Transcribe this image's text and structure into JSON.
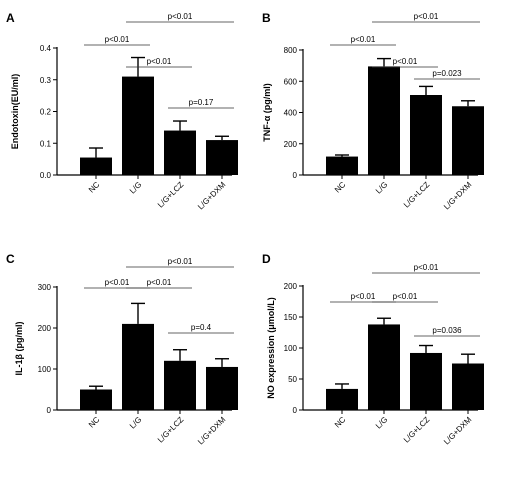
{
  "colors": {
    "bar": "#000000",
    "axis": "#000000",
    "bracket": "#333333"
  },
  "chart_data": [
    {
      "type": "bar",
      "panel": "A",
      "categories": [
        "NC",
        "L/G",
        "L/G+LCZ",
        "L/G+DXM"
      ],
      "values": [
        0.055,
        0.31,
        0.14,
        0.11
      ],
      "errors": [
        0.03,
        0.06,
        0.03,
        0.012
      ],
      "ylabel": "Endotoxin(EU/ml)",
      "ylim": [
        0,
        0.4
      ],
      "yticks": [
        "0.0",
        "0.1",
        "0.2",
        "0.3",
        "0.4"
      ],
      "ytick_values": [
        0,
        0.1,
        0.2,
        0.3,
        0.4
      ],
      "comparisons": [
        {
          "from": 1,
          "to": 3,
          "label": "p<0.01"
        },
        {
          "from": 0,
          "to": 1,
          "label": "p<0.01"
        },
        {
          "from": 1,
          "to": 2,
          "label": "p<0.01"
        },
        {
          "from": 2,
          "to": 3,
          "label": "p=0.17"
        }
      ]
    },
    {
      "type": "bar",
      "panel": "B",
      "categories": [
        "NC",
        "L/G",
        "L/G+LCZ",
        "L/G+DXM"
      ],
      "values": [
        118,
        695,
        512,
        440
      ],
      "errors": [
        10,
        50,
        55,
        35
      ],
      "ylabel": "TNF-α (pg/ml)",
      "ylim": [
        0,
        800
      ],
      "yticks": [
        "0",
        "200",
        "400",
        "600",
        "800"
      ],
      "ytick_values": [
        0,
        200,
        400,
        600,
        800
      ],
      "comparisons": [
        {
          "from": 1,
          "to": 3,
          "label": "p<0.01"
        },
        {
          "from": 0,
          "to": 1,
          "label": "p<0.01"
        },
        {
          "from": 1,
          "to": 2,
          "label": "p<0.01"
        },
        {
          "from": 2,
          "to": 3,
          "label": "p=0.023"
        }
      ]
    },
    {
      "type": "bar",
      "panel": "C",
      "categories": [
        "NC",
        "L/G",
        "L/G+LCZ",
        "L/G+DXM"
      ],
      "values": [
        50,
        210,
        120,
        105
      ],
      "errors": [
        8,
        50,
        27,
        20
      ],
      "ylabel": "IL-1β (pg/ml)",
      "ylim": [
        0,
        300
      ],
      "yticks": [
        "0",
        "100",
        "200",
        "300"
      ],
      "ytick_values": [
        0,
        100,
        200,
        300
      ],
      "comparisons": [
        {
          "from": 1,
          "to": 3,
          "label": "p<0.01"
        },
        {
          "from": 0,
          "to": 1,
          "label": "p<0.01"
        },
        {
          "from": 1,
          "to": 2,
          "label": "p<0.01"
        },
        {
          "from": 2,
          "to": 3,
          "label": "p=0.4"
        }
      ]
    },
    {
      "type": "bar",
      "panel": "D",
      "categories": [
        "NC",
        "L/G",
        "L/G+LCZ",
        "L/G+DXM"
      ],
      "values": [
        34,
        138,
        92,
        75
      ],
      "errors": [
        8,
        10,
        12,
        15
      ],
      "ylabel": "NO expression (μmol/L)",
      "ylim": [
        0,
        200
      ],
      "yticks": [
        "0",
        "50",
        "100",
        "150",
        "200"
      ],
      "ytick_values": [
        0,
        50,
        100,
        150,
        200
      ],
      "comparisons": [
        {
          "from": 1,
          "to": 3,
          "label": "p<0.01"
        },
        {
          "from": 0,
          "to": 1,
          "label": "p<0.01"
        },
        {
          "from": 1,
          "to": 2,
          "label": "p<0.01"
        },
        {
          "from": 2,
          "to": 3,
          "label": "p=0.036"
        }
      ]
    }
  ]
}
